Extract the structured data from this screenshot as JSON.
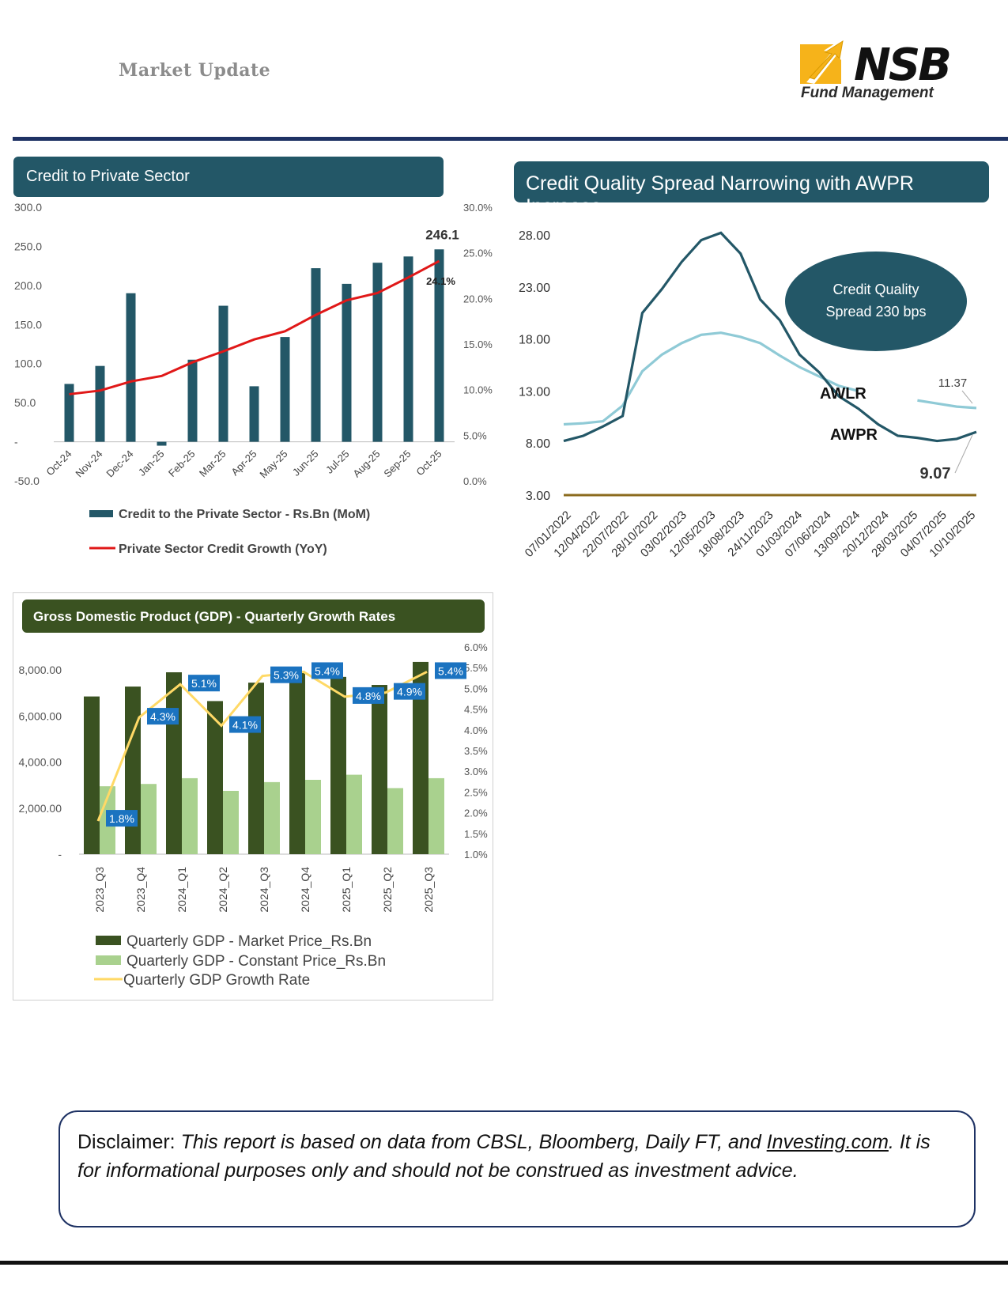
{
  "header": {
    "title": "Market Update"
  },
  "logo": {
    "brand": "NSB",
    "sub": "Fund Management"
  },
  "credit_panel": {
    "title": "Credit to Private Sector"
  },
  "spread_panel": {
    "title": "Credit Quality Spread Narrowing with AWPR Increase",
    "ellipse_line1": "Credit Quality",
    "ellipse_line2": "Spread  230 bps"
  },
  "gdp_panel": {
    "title": "Gross Domestic Product (GDP) - Quarterly Growth Rates"
  },
  "disclaimer": {
    "label": "Disclaimer:",
    "text_before": "This report is based on data from CBSL, Bloomberg, Daily FT, and ",
    "link": "Investing.com",
    "text_after": ". It is for informational purposes only and should not be construed as investment advice."
  },
  "colors": {
    "teal": "#235767",
    "dark_green": "#3a5221",
    "red": "#e01818",
    "light_teal": "#8fcad6",
    "light_green": "#a9d18e",
    "yellow": "#ffd966",
    "navy": "#1e3264",
    "label_blue": "#1b73c0"
  },
  "chart_data": [
    {
      "type": "bar",
      "title": "Credit to Private Sector",
      "categories": [
        "Oct-24",
        "Nov-24",
        "Dec-24",
        "Jan-25",
        "Feb-25",
        "Mar-25",
        "Apr-25",
        "May-25",
        "Jun-25",
        "Jul-25",
        "Aug-25",
        "Sep-25",
        "Oct-25"
      ],
      "series": [
        {
          "name": "Credit to the Private Sector - Rs.Bn (MoM)",
          "axis": "left",
          "values": [
            74,
            97,
            190,
            -5,
            105,
            174,
            71,
            134,
            222,
            202,
            229,
            237,
            246.1
          ]
        },
        {
          "name": "Private Sector Credit Growth (YoY)",
          "axis": "right",
          "type": "line",
          "values": [
            9.5,
            9.9,
            10.9,
            11.5,
            13.0,
            14.2,
            15.5,
            16.4,
            18.2,
            19.8,
            20.6,
            22.3,
            24.1
          ]
        }
      ],
      "left_axis": {
        "ticks": [
          "300.0",
          "250.0",
          "200.0",
          "150.0",
          "100.0",
          "50.0",
          "-",
          "-50.0"
        ],
        "ylim": [
          -50,
          300
        ]
      },
      "right_axis": {
        "ticks": [
          "30.0%",
          "25.0%",
          "20.0%",
          "15.0%",
          "10.0%",
          "5.0%",
          "0.0%"
        ],
        "ylim": [
          0,
          30
        ]
      },
      "annotations": [
        "246.1",
        "24.1%"
      ]
    },
    {
      "type": "line",
      "title": "Credit Quality Spread Narrowing with AWPR Increase",
      "x_ticks": [
        "07/01/2022",
        "12/04/2022",
        "22/07/2022",
        "28/10/2022",
        "03/02/2023",
        "12/05/2023",
        "18/08/2023",
        "24/11/2023",
        "01/03/2024",
        "07/06/2024",
        "13/09/2024",
        "20/12/2024",
        "28/03/2025",
        "04/07/2025",
        "10/10/2025"
      ],
      "y_ticks": [
        "28.00",
        "23.00",
        "18.00",
        "13.00",
        "8.00",
        "3.00"
      ],
      "ylim": [
        3,
        28
      ],
      "series": [
        {
          "name": "AWLR",
          "values": [
            9.8,
            9.9,
            10.1,
            11.6,
            14.9,
            16.5,
            17.6,
            18.4,
            18.6,
            18.2,
            17.6,
            16.4,
            15.3,
            14.4,
            13.5,
            13.0,
            null,
            null,
            12.1,
            11.8,
            11.5,
            11.37
          ]
        },
        {
          "name": "AWPR",
          "values": [
            8.2,
            8.7,
            9.6,
            10.6,
            20.5,
            22.8,
            25.4,
            27.5,
            28.2,
            26.2,
            21.8,
            19.8,
            16.5,
            14.8,
            12.5,
            11.3,
            9.8,
            8.7,
            8.5,
            8.2,
            8.4,
            9.07
          ]
        },
        {
          "name": "Baseline",
          "values": [
            3.0,
            3.0,
            3.0,
            3.0,
            3.0,
            3.0,
            3.0,
            3.0,
            3.0,
            3.0,
            3.0,
            3.0,
            3.0,
            3.0,
            3.0,
            3.0,
            3.0,
            3.0,
            3.0,
            3.0,
            3.0,
            3.0
          ]
        }
      ],
      "labels": {
        "awlr": "AWLR",
        "awpr": "AWPR",
        "awlr_end": "11.37",
        "awpr_end": "9.07"
      }
    },
    {
      "type": "bar",
      "title": "Gross Domestic Product (GDP) - Quarterly Growth Rates",
      "categories": [
        "2023_Q3",
        "2023_Q4",
        "2024_Q1",
        "2024_Q2",
        "2024_Q3",
        "2024_Q4",
        "2025_Q1",
        "2025_Q2",
        "2025_Q3"
      ],
      "series": [
        {
          "name": "Quarterly GDP - Market Price_Rs.Bn",
          "axis": "left",
          "values": [
            6850,
            7280,
            7900,
            6650,
            7450,
            7950,
            7700,
            7350,
            8350
          ]
        },
        {
          "name": "Quarterly GDP - Constant Price_Rs.Bn",
          "axis": "left",
          "values": [
            2950,
            3050,
            3300,
            2750,
            3130,
            3230,
            3450,
            2870,
            3300
          ]
        },
        {
          "name": "Quarterly GDP Growth Rate",
          "axis": "right",
          "type": "line",
          "values": [
            1.8,
            4.3,
            5.1,
            4.1,
            5.3,
            5.4,
            4.8,
            4.9,
            5.4
          ],
          "data_labels": [
            "1.8%",
            "4.3%",
            "5.1%",
            "4.1%",
            "5.3%",
            "5.4%",
            "4.8%",
            "4.9%",
            "5.4%"
          ]
        }
      ],
      "left_axis": {
        "ticks": [
          "8,000.00",
          "6,000.00",
          "4,000.00",
          "2,000.00",
          "-"
        ],
        "ylim": [
          0,
          9000
        ]
      },
      "right_axis": {
        "ticks": [
          "6.0%",
          "5.5%",
          "5.0%",
          "4.5%",
          "4.0%",
          "3.5%",
          "3.0%",
          "2.5%",
          "2.0%",
          "1.5%",
          "1.0%"
        ],
        "ylim": [
          1,
          6
        ]
      }
    }
  ]
}
